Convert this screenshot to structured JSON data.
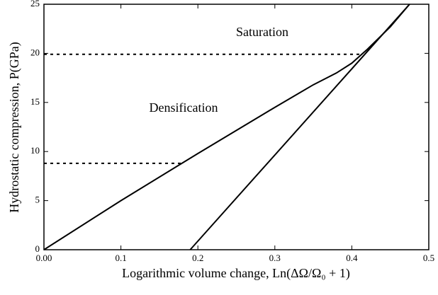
{
  "chart_data": {
    "type": "line",
    "xlabel": "Logarithmic volume change, Ln(ΔΩ/Ω₀ + 1)",
    "ylabel": "Hydrostatic compression, P(GPa)",
    "annotations": [
      "Saturation",
      "Densification"
    ],
    "xlim": [
      0,
      0.5
    ],
    "ylim": [
      0,
      25
    ],
    "xticks": [
      {
        "value": 0,
        "label": "0.00"
      },
      0.1,
      0.2,
      0.3,
      0.4,
      0.5
    ],
    "yticks": [
      0,
      5,
      10,
      15,
      20,
      25
    ],
    "series": [
      {
        "color": "#000000",
        "style": "solid",
        "x": [
          0,
          0.1,
          0.2,
          0.3,
          0.35,
          0.38,
          0.4,
          0.42,
          0.45,
          0.475
        ],
        "values": [
          0,
          5.0,
          9.8,
          14.5,
          16.8,
          18.0,
          19.0,
          20.4,
          22.7,
          25
        ]
      },
      {
        "color": "#000000",
        "style": "solid",
        "x": [
          0.19,
          0.475
        ],
        "values": [
          0,
          25
        ]
      },
      {
        "color": "#000000",
        "style": "dashed",
        "x": [
          0,
          0.18
        ],
        "values": [
          8.8,
          8.8
        ]
      },
      {
        "color": "#000000",
        "style": "dashed",
        "x": [
          0,
          0.41
        ],
        "values": [
          19.9,
          19.9
        ]
      }
    ]
  }
}
